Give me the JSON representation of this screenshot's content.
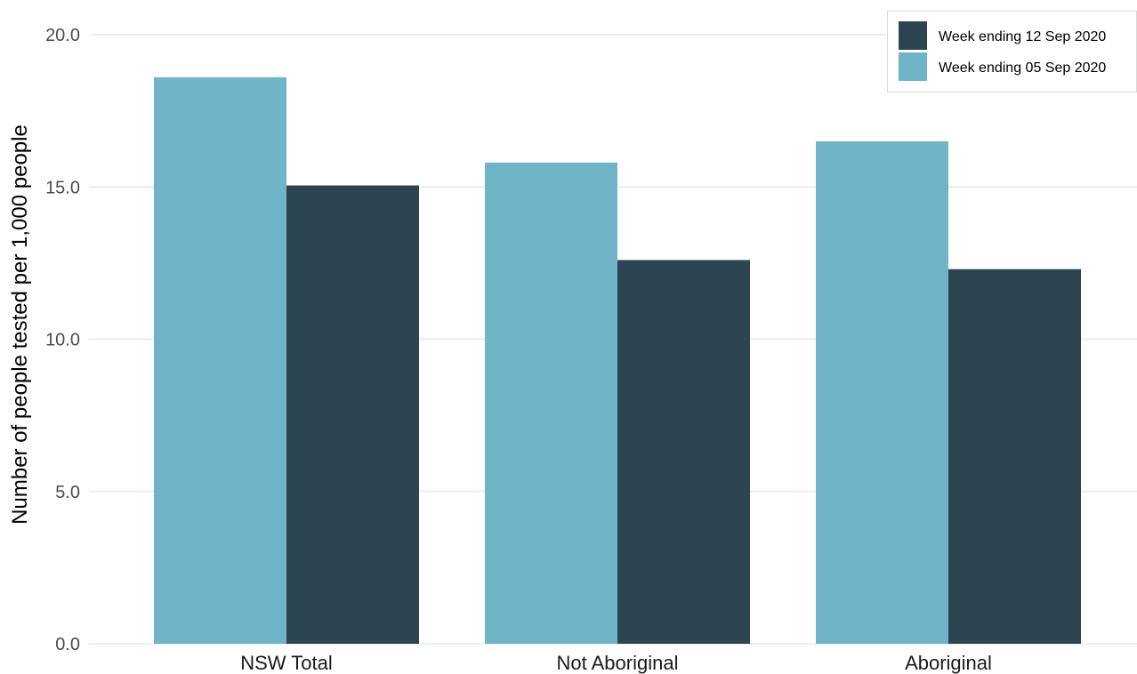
{
  "chart_data": {
    "type": "bar",
    "title": "",
    "xlabel": "",
    "ylabel": "Number of people tested per 1,000 people",
    "categories": [
      "NSW Total",
      "Not Aboriginal",
      "Aboriginal"
    ],
    "series": [
      {
        "name": "Week ending 05 Sep 2020",
        "color": "#70b4c8",
        "values": [
          18.6,
          15.8,
          16.5
        ]
      },
      {
        "name": "Week ending 12 Sep 2020",
        "color": "#2d4550",
        "values": [
          15.05,
          12.6,
          12.3
        ]
      }
    ],
    "ylim": [
      0,
      20
    ],
    "yticks": [
      "0.0",
      "5.0",
      "10.0",
      "15.0",
      "20.0"
    ],
    "grid": true,
    "legend": {
      "position": "top-right",
      "order": [
        "Week ending 12 Sep 2020",
        "Week ending 05 Sep 2020"
      ]
    }
  }
}
